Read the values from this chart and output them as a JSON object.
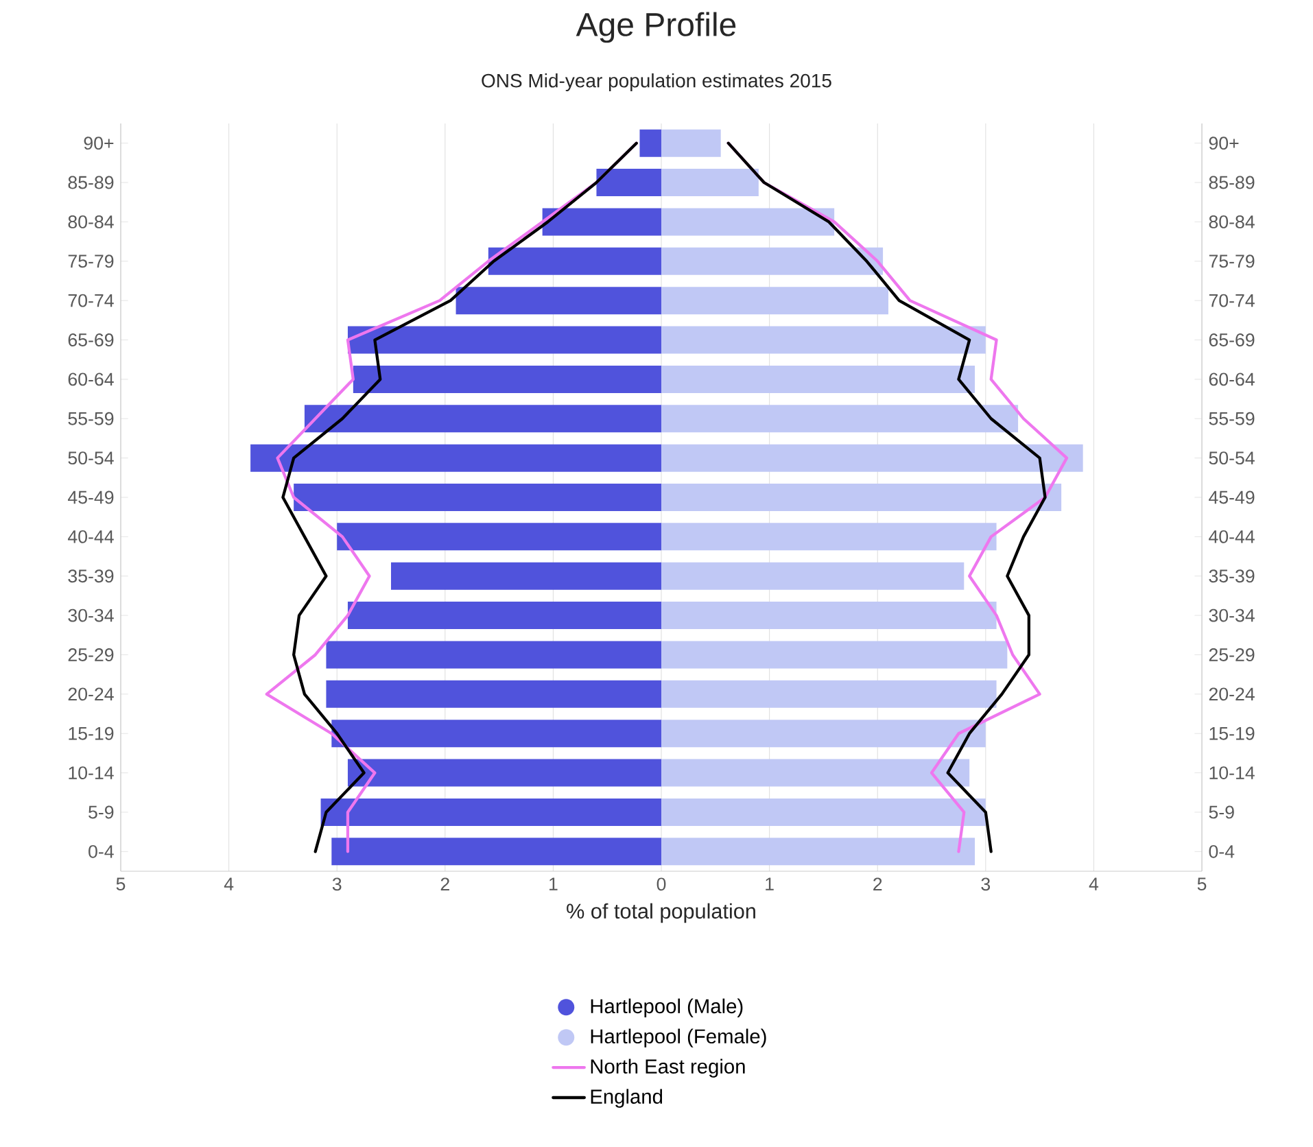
{
  "chart_data": {
    "type": "bar",
    "orientation": "horizontal",
    "title": "Age Profile",
    "subtitle": "ONS Mid-year population estimates 2015",
    "xlabel": "% of total population",
    "categories": [
      "90+",
      "85-89",
      "80-84",
      "75-79",
      "70-74",
      "65-69",
      "60-64",
      "55-59",
      "50-54",
      "45-49",
      "40-44",
      "35-39",
      "30-34",
      "25-29",
      "20-24",
      "15-19",
      "10-14",
      "5-9",
      "0-4"
    ],
    "y2_categories": [
      "90+",
      "85-89",
      "80-84",
      "75-79",
      "70-74",
      "65-69",
      "60-64",
      "55-59",
      "50-54",
      "45-49",
      "40-44",
      "35-39",
      "30-34",
      "25-29",
      "20-24",
      "15-19",
      "10-14",
      "5-9",
      "0-4"
    ],
    "series": [
      {
        "name": "Hartlepool (Male)",
        "color": "#5053dc",
        "values": [
          -0.2,
          -0.6,
          -1.1,
          -1.6,
          -1.9,
          -2.9,
          -2.85,
          -3.3,
          -3.8,
          -3.4,
          -3.0,
          -2.5,
          -2.9,
          -3.1,
          -3.1,
          -3.05,
          -2.9,
          -3.15,
          -3.05
        ]
      },
      {
        "name": "Hartlepool (Female)",
        "color": "#c0c8f5",
        "values": [
          0.55,
          0.9,
          1.6,
          2.05,
          2.1,
          3.0,
          2.9,
          3.3,
          3.9,
          3.7,
          3.1,
          2.8,
          3.1,
          3.2,
          3.1,
          3.0,
          2.85,
          3.0,
          2.9
        ]
      },
      {
        "name": "North East region",
        "type": "line",
        "color": "#ee77ee",
        "values": [
          -0.23,
          -0.6,
          -1.1,
          -1.6,
          -2.05,
          -2.9,
          -2.85,
          -3.2,
          -3.55,
          -3.4,
          -2.95,
          -2.7,
          -2.9,
          -3.2,
          -3.65,
          -3.05,
          -2.65,
          -2.9,
          -2.9
        ]
      },
      {
        "type": "line",
        "color": "#ee77ee",
        "values": [
          0.62,
          0.95,
          1.6,
          2.0,
          2.3,
          3.1,
          3.05,
          3.35,
          3.75,
          3.55,
          3.05,
          2.85,
          3.1,
          3.25,
          3.5,
          2.75,
          2.5,
          2.8,
          2.75
        ]
      },
      {
        "name": "England",
        "type": "line",
        "color": "#000000",
        "values": [
          -0.23,
          -0.6,
          -1.05,
          -1.55,
          -1.95,
          -2.65,
          -2.6,
          -2.95,
          -3.4,
          -3.5,
          -3.3,
          -3.1,
          -3.35,
          -3.4,
          -3.3,
          -3.0,
          -2.75,
          -3.1,
          -3.2
        ]
      },
      {
        "type": "line",
        "color": "#000000",
        "values": [
          0.62,
          0.95,
          1.55,
          1.9,
          2.2,
          2.85,
          2.75,
          3.05,
          3.5,
          3.55,
          3.35,
          3.2,
          3.4,
          3.4,
          3.15,
          2.85,
          2.65,
          3.0,
          3.05
        ]
      }
    ],
    "xlim": [
      -5,
      5
    ],
    "xticks": [
      {
        "value": -5,
        "label": "5"
      },
      {
        "value": -4,
        "label": "4"
      },
      {
        "value": -3,
        "label": "3"
      },
      {
        "value": -2,
        "label": "2"
      },
      {
        "value": -1,
        "label": "1"
      },
      0,
      1,
      2,
      3,
      4,
      5
    ],
    "stacked": true,
    "grid": "x",
    "legend": "bottom"
  }
}
